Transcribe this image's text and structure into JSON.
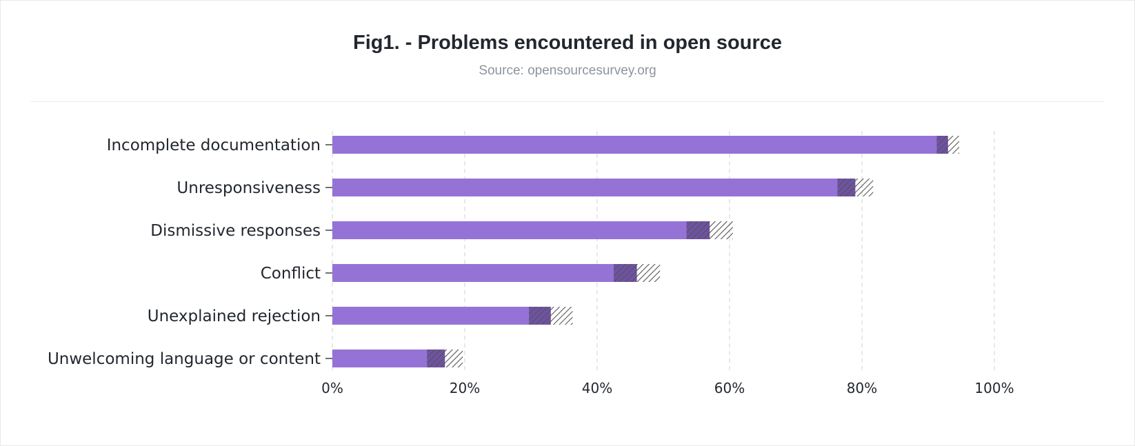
{
  "header": {
    "title": "Fig1. - Problems encountered in open source",
    "subtitle": "Source: opensourcesurvey.org"
  },
  "colors": {
    "bar": "#9573d6",
    "grid": "#d9dcdf",
    "text": "#22272e",
    "subtitle": "#8c949c",
    "hatch": "#555555"
  },
  "chart_data": {
    "type": "bar",
    "orientation": "horizontal",
    "categories": [
      "Incomplete documentation",
      "Unresponsiveness",
      "Dismissive responses",
      "Conflict",
      "Unexplained rejection",
      "Unwelcoming language or content"
    ],
    "values": [
      93,
      79,
      57,
      46,
      33,
      17
    ],
    "error_band": [
      1.7,
      2.7,
      3.5,
      3.5,
      3.3,
      2.7
    ],
    "xlim": [
      0,
      100
    ],
    "xticks": [
      "0%",
      "20%",
      "40%",
      "60%",
      "80%",
      "100%"
    ],
    "grid": "vertical dashed",
    "legend": "none"
  }
}
